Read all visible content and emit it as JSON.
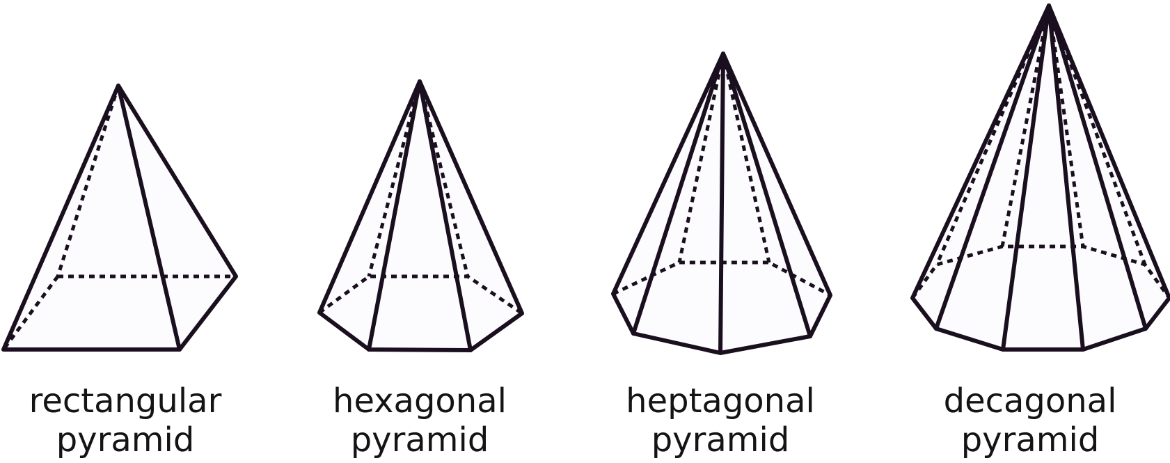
{
  "figures": [
    {
      "id": "rectangular",
      "line1": "rectangular",
      "line2": "pyramid"
    },
    {
      "id": "hexagonal",
      "line1": "hexagonal",
      "line2": "pyramid"
    },
    {
      "id": "heptagonal",
      "line1": "heptagonal",
      "line2": "pyramid"
    },
    {
      "id": "decagonal",
      "line1": "decagonal",
      "line2": "pyramid"
    }
  ],
  "colors": {
    "stroke": "#1a0f1e",
    "face": "#fcfbfd",
    "text": "#141414"
  }
}
